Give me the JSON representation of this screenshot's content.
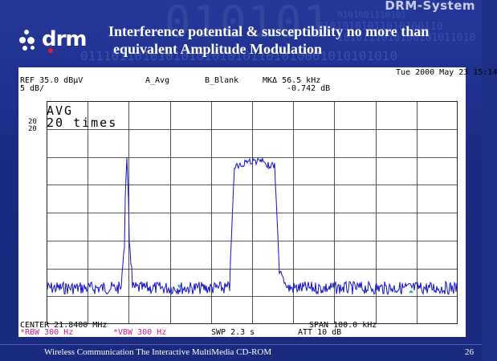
{
  "brand": {
    "system_label": "DRM-System",
    "logo_text": "drm"
  },
  "background": {
    "big_binary": "010101",
    "binary_lines": [
      "0101001110101",
      "01010101011010100110",
      "1010111010100101011010",
      "01110110101010101010101101010001010101010"
    ]
  },
  "slide": {
    "title_line1": "Interference potential & susceptibility no more than",
    "title_line2": "equivalent Amplitude Modulation"
  },
  "analyzer": {
    "datetime": "Tue 2000 May 23 15:14",
    "ref": "REF 35.0 dBµV",
    "trace_a": "A_Avg",
    "trace_b": "B_Blank",
    "marker": "MKΔ 56.5 kHz",
    "marker_level": "-0.742 dB",
    "scale": "5 dB/",
    "avg_label": "AVG",
    "avg_count": "20 times",
    "side_top": "20",
    "side_bottom": "20",
    "center": "CENTER 21.8400 MHz",
    "span": "SPAN 100.0 kHz",
    "rbw": "*RBW 300 Hz",
    "vbw": "*VBW 300 Hz",
    "swp": "SWP 2.3 s",
    "att": "ATT 10 dB"
  },
  "footer": {
    "left": "Wireless Communication The Interactive MultiMedia CD-ROM",
    "page": "26"
  },
  "colors": {
    "trace": "#1010d0",
    "grid": "#222222",
    "accent_magenta": "#c0209a",
    "marker": "#20c0c0"
  }
}
